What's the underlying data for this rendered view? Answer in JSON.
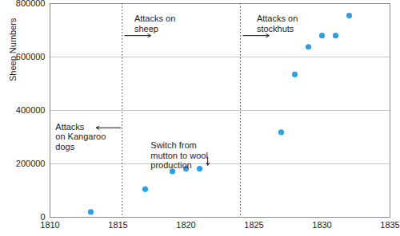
{
  "chart_data": {
    "type": "scatter",
    "y_label": "Sheep Numbers",
    "x": [
      1813,
      1817,
      1819,
      1820,
      1821,
      1827,
      1828,
      1829,
      1830,
      1831,
      1832
    ],
    "values": [
      20000,
      105000,
      172000,
      182000,
      182000,
      318000,
      535000,
      638000,
      680000,
      680000,
      755000
    ],
    "color": "#2f9fe4",
    "marker": "circle",
    "xlim": [
      1810,
      1835
    ],
    "xticks": [
      1810,
      1815,
      1820,
      1825,
      1830,
      1835
    ],
    "ylim": [
      0,
      800000
    ],
    "yticks": [
      0,
      200000,
      400000,
      600000,
      800000
    ],
    "grid": "y",
    "reference_lines": [
      {
        "x": 1815.3,
        "line_style": "dotted"
      },
      {
        "x": 1824.0,
        "line_style": "dotted"
      }
    ],
    "annotations": [
      {
        "text": "Attacks\non Kangaroo\ndogs",
        "x": 1810.4,
        "y": 355000,
        "arrow": [
          1815.2,
          335000,
          1813.4,
          335000
        ]
      },
      {
        "text": "Attacks on\nsheep",
        "x": 1816.2,
        "y": 760000,
        "arrow": [
          1815.5,
          680000,
          1817.4,
          680000
        ]
      },
      {
        "text": "Attacks on\nstockhuts",
        "x": 1825.2,
        "y": 760000,
        "arrow": [
          1824.2,
          680000,
          1826.1,
          680000
        ]
      },
      {
        "text": "Switch from\nmutton to wool\nproduction",
        "x": 1817.4,
        "y": 285000,
        "arrow": [
          1821.6,
          225000,
          1821.6,
          195000
        ]
      }
    ]
  }
}
